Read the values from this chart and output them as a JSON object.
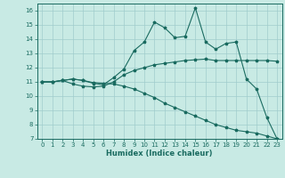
{
  "xlabel": "Humidex (Indice chaleur)",
  "xlim": [
    -0.5,
    23.5
  ],
  "ylim": [
    7,
    16.5
  ],
  "yticks": [
    7,
    8,
    9,
    10,
    11,
    12,
    13,
    14,
    15,
    16
  ],
  "xticks": [
    0,
    1,
    2,
    3,
    4,
    5,
    6,
    7,
    8,
    9,
    10,
    11,
    12,
    13,
    14,
    15,
    16,
    17,
    18,
    19,
    20,
    21,
    22,
    23
  ],
  "bg_color": "#c8eae4",
  "line_color": "#1a6b60",
  "grid_color": "#a0cccc",
  "line1_x": [
    0,
    1,
    2,
    3,
    4,
    5,
    6,
    7,
    8,
    9,
    10,
    11,
    12,
    13,
    14,
    15,
    16,
    17,
    18,
    19,
    20,
    21,
    22,
    23
  ],
  "line1_y": [
    11.0,
    11.0,
    11.1,
    10.85,
    10.7,
    10.65,
    10.7,
    11.0,
    11.5,
    11.8,
    12.0,
    12.2,
    12.3,
    12.4,
    12.5,
    12.55,
    12.6,
    12.5,
    12.5,
    12.5,
    12.5,
    12.5,
    12.5,
    12.45
  ],
  "line2_x": [
    0,
    1,
    2,
    3,
    4,
    5,
    6,
    7,
    8,
    9,
    10,
    11,
    12,
    13,
    14,
    15,
    16,
    17,
    18,
    19,
    20,
    21,
    22,
    23
  ],
  "line2_y": [
    11.0,
    11.0,
    11.1,
    11.2,
    11.1,
    10.9,
    10.8,
    11.3,
    11.9,
    13.2,
    13.8,
    15.2,
    14.8,
    14.1,
    14.2,
    16.2,
    13.8,
    13.3,
    13.7,
    13.8,
    11.2,
    10.5,
    8.5,
    7.0
  ],
  "line3_x": [
    0,
    1,
    2,
    3,
    4,
    5,
    6,
    7,
    8,
    9,
    10,
    11,
    12,
    13,
    14,
    15,
    16,
    17,
    18,
    19,
    20,
    21,
    22,
    23
  ],
  "line3_y": [
    11.0,
    11.0,
    11.1,
    11.2,
    11.1,
    10.95,
    10.9,
    10.85,
    10.7,
    10.5,
    10.2,
    9.9,
    9.5,
    9.2,
    8.9,
    8.6,
    8.3,
    8.0,
    7.8,
    7.6,
    7.5,
    7.4,
    7.2,
    7.0
  ],
  "xlabel_fontsize": 6,
  "tick_fontsize": 5,
  "linewidth": 0.8,
  "markersize": 2.5
}
